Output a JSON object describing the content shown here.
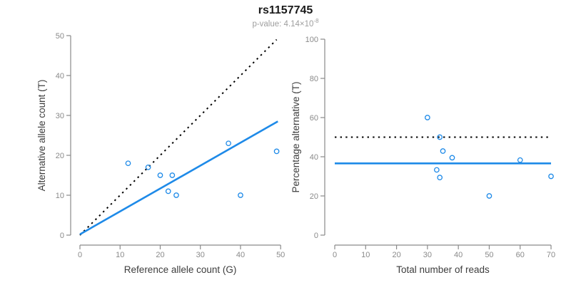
{
  "header": {
    "title": "rs1157745",
    "p_value_text": "p-value: 4.14×10",
    "p_value_exponent": "-8"
  },
  "colors": {
    "accent_blue": "#1e8ae8",
    "axis_line": "#8a8a8a",
    "tick_label": "#8a8a8a",
    "axis_title": "#3d3d3d",
    "dotted_line": "#000000"
  },
  "chart_data": [
    {
      "type": "scatter",
      "name": "allele-counts",
      "xlabel": "Reference allele count (G)",
      "ylabel": "Alternative allele count (T)",
      "xlim": [
        0,
        50
      ],
      "ylim": [
        0,
        50
      ],
      "xticks": [
        0,
        10,
        20,
        30,
        40,
        50
      ],
      "yticks": [
        0,
        10,
        20,
        30,
        40,
        50
      ],
      "grid": false,
      "points": [
        [
          12,
          18
        ],
        [
          17,
          17
        ],
        [
          20,
          15
        ],
        [
          23,
          15
        ],
        [
          22,
          11
        ],
        [
          24,
          10
        ],
        [
          37,
          23
        ],
        [
          40,
          10
        ],
        [
          49,
          21
        ]
      ],
      "lines": [
        {
          "name": "identity-line",
          "style": "dotted",
          "color": "#000000",
          "x1": 0,
          "y1": 0,
          "x2": 49,
          "y2": 49
        },
        {
          "name": "fit-line",
          "style": "solid",
          "color": "#1e8ae8",
          "x1": 0,
          "y1": 0.2,
          "x2": 49.3,
          "y2": 28.5
        }
      ]
    },
    {
      "type": "scatter",
      "name": "percentage-alternative",
      "xlabel": "Total number of reads",
      "ylabel": "Percentage alternative (T)",
      "xlim": [
        0,
        70
      ],
      "ylim": [
        0,
        100
      ],
      "xticks": [
        0,
        10,
        20,
        30,
        40,
        50,
        60,
        70
      ],
      "yticks": [
        0,
        20,
        40,
        60,
        80,
        100
      ],
      "grid": false,
      "points": [
        [
          30,
          60
        ],
        [
          34,
          50
        ],
        [
          35,
          42.9
        ],
        [
          38,
          39.5
        ],
        [
          33,
          33.3
        ],
        [
          34,
          29.4
        ],
        [
          60,
          38.3
        ],
        [
          50,
          20
        ],
        [
          70,
          30
        ]
      ],
      "lines": [
        {
          "name": "expected-50pct-line",
          "style": "dotted",
          "color": "#000000",
          "x1": 0,
          "y1": 50,
          "x2": 70,
          "y2": 50
        },
        {
          "name": "mean-percentage-line",
          "style": "solid",
          "color": "#1e8ae8",
          "x1": 0,
          "y1": 36.6,
          "x2": 70,
          "y2": 36.6
        }
      ]
    }
  ]
}
